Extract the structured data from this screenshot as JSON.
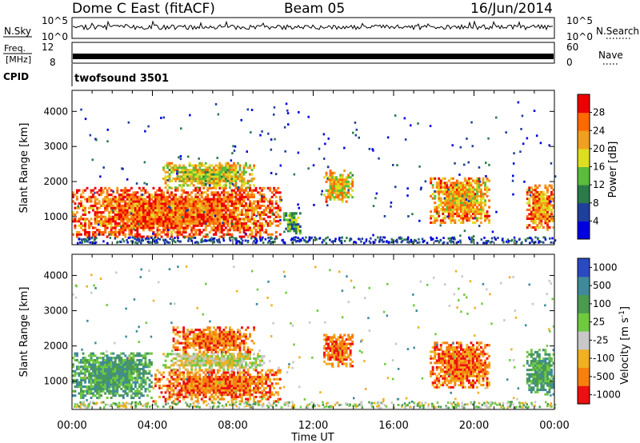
{
  "header": {
    "station": "Dome C East (fitACF)",
    "beam": "Beam 05",
    "date": "16/Jun/2014"
  },
  "strips": {
    "nsky_label": "N.Sky",
    "nsearch_label": "N.Search",
    "nsky_ticks": [
      "10^5",
      "10^0"
    ],
    "nsearch_ticks": [
      "10^5",
      "10^0"
    ],
    "freq_label_1": "Freq.",
    "freq_label_2": "[MHz]",
    "freq_ticks": [
      "12",
      "8"
    ],
    "nave_label": "Nave",
    "nave_ticks": [
      "60",
      "0"
    ],
    "cpid_label": "CPID",
    "cpid_value": "twofsound 3501"
  },
  "chart_data": [
    {
      "type": "heatmap",
      "name": "power",
      "ylabel": "Slant Range [km]",
      "xlabel": "Time UT",
      "xlim_hours": [
        0,
        24
      ],
      "ylim": [
        200,
        4600
      ],
      "yticks": [
        "1000",
        "2000",
        "3000",
        "4000"
      ],
      "x_ticklabels": [
        "00:00",
        "04:00",
        "08:00",
        "12:00",
        "16:00",
        "20:00",
        "00:00"
      ],
      "colorbar": {
        "label": "Power [dB]",
        "ticks": [
          "4",
          "8",
          "12",
          "16",
          "20",
          "24",
          "28"
        ],
        "range": [
          0,
          32
        ],
        "colors": [
          "#0000e0",
          "#1f3f9c",
          "#2a7a4a",
          "#5cbd3c",
          "#dede20",
          "#f0a020",
          "#ff6a00",
          "#ee0000"
        ]
      },
      "echo_regions": [
        {
          "t0": 0.0,
          "t1": 10.3,
          "r0": 400,
          "r1": 1800,
          "level": 0.78
        },
        {
          "t0": 4.5,
          "t1": 9.0,
          "r0": 1800,
          "r1": 2500,
          "level": 0.55
        },
        {
          "t0": 10.5,
          "t1": 11.3,
          "r0": 500,
          "r1": 1100,
          "level": 0.35
        },
        {
          "t0": 12.5,
          "t1": 13.9,
          "r0": 1400,
          "r1": 2300,
          "level": 0.6
        },
        {
          "t0": 17.8,
          "t1": 20.8,
          "r0": 800,
          "r1": 2100,
          "level": 0.65
        },
        {
          "t0": 22.6,
          "t1": 24.0,
          "r0": 600,
          "r1": 1900,
          "level": 0.72
        }
      ]
    },
    {
      "type": "heatmap",
      "name": "velocity",
      "ylabel": "Slant Range [km]",
      "xlabel": "Time UT",
      "xlim_hours": [
        0,
        24
      ],
      "ylim": [
        200,
        4600
      ],
      "yticks": [
        "1000",
        "2000",
        "3000",
        "4000"
      ],
      "x_ticklabels": [
        "00:00",
        "04:00",
        "08:00",
        "12:00",
        "16:00",
        "20:00",
        "00:00"
      ],
      "colorbar": {
        "label": "Velocity [m s^-1]",
        "ticks": [
          "1000",
          "500",
          "100",
          "25",
          "-25",
          "-100",
          "-500",
          "-1000"
        ],
        "colors": [
          "#2a4ac0",
          "#3f8a9a",
          "#4a9a50",
          "#6fca3f",
          "#c8c8c8",
          "#f0b020",
          "#f58010",
          "#ee1010"
        ]
      },
      "echo_regions": [
        {
          "t0": 0.0,
          "t1": 4.0,
          "r0": 500,
          "r1": 1800,
          "velocity": "green"
        },
        {
          "t0": 4.0,
          "t1": 10.3,
          "r0": 400,
          "r1": 1300,
          "velocity": "orange"
        },
        {
          "t0": 4.5,
          "t1": 9.5,
          "r0": 1300,
          "r1": 1800,
          "velocity": "gray"
        },
        {
          "t0": 5.0,
          "t1": 9.0,
          "r0": 1800,
          "r1": 2500,
          "velocity": "orange"
        },
        {
          "t0": 12.5,
          "t1": 13.9,
          "r0": 1400,
          "r1": 2300,
          "velocity": "orange"
        },
        {
          "t0": 17.8,
          "t1": 20.8,
          "r0": 800,
          "r1": 2100,
          "velocity": "orange"
        },
        {
          "t0": 22.6,
          "t1": 24.0,
          "r0": 600,
          "r1": 1900,
          "velocity": "green"
        }
      ]
    }
  ]
}
